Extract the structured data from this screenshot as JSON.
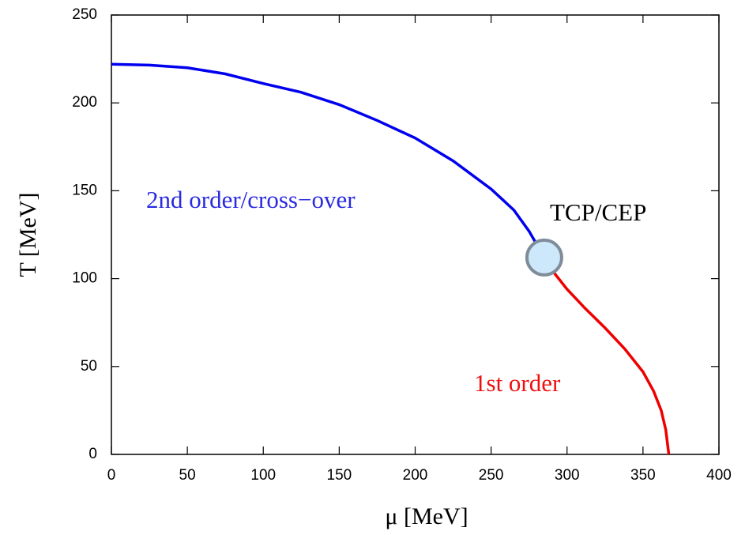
{
  "chart_data": {
    "type": "line",
    "xlabel": "μ  [MeV]",
    "ylabel": "T [MeV]",
    "xlim": [
      0,
      400
    ],
    "ylim": [
      0,
      250
    ],
    "xticks": [
      0,
      50,
      100,
      150,
      200,
      250,
      300,
      350,
      400
    ],
    "yticks": [
      0,
      50,
      100,
      150,
      200,
      250
    ],
    "grid": false,
    "series": [
      {
        "color": "#0000ee",
        "x": [
          0,
          25,
          50,
          75,
          100,
          125,
          150,
          175,
          200,
          225,
          250,
          265,
          275,
          281
        ],
        "values": [
          222,
          221.5,
          220,
          216.5,
          211,
          206,
          199,
          190,
          180,
          167,
          151,
          139,
          127,
          118
        ]
      },
      {
        "color": "#ee0000",
        "x": [
          289,
          300,
          312,
          325,
          338,
          350,
          357,
          362,
          365,
          367
        ],
        "values": [
          106,
          94,
          83,
          72,
          60,
          47,
          36,
          25,
          14,
          0
        ]
      }
    ],
    "critical_point": {
      "x": 285,
      "y": 112,
      "color": "#cce8fa",
      "edge_color": "#7f8c99"
    },
    "annotations": [
      {
        "text": "2nd order/cross−over",
        "color": "#2a2ae0"
      },
      {
        "text": "TCP/CEP",
        "color": "#000000"
      },
      {
        "text": "1st order",
        "color": "#ee1111"
      }
    ]
  }
}
